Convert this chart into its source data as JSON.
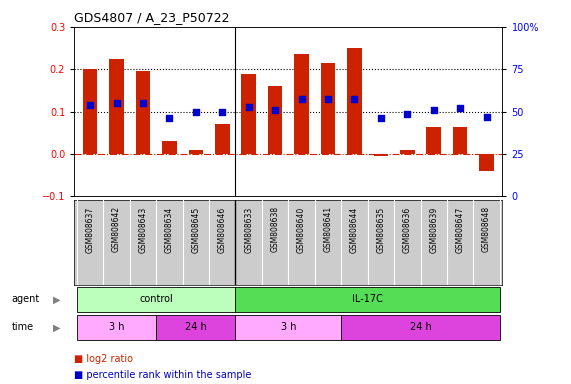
{
  "title": "GDS4807 / A_23_P50722",
  "samples": [
    "GSM808637",
    "GSM808642",
    "GSM808643",
    "GSM808634",
    "GSM808645",
    "GSM808646",
    "GSM808633",
    "GSM808638",
    "GSM808640",
    "GSM808641",
    "GSM808644",
    "GSM808635",
    "GSM808636",
    "GSM808639",
    "GSM808647",
    "GSM808648"
  ],
  "log2_ratio": [
    0.2,
    0.225,
    0.195,
    0.03,
    0.01,
    0.07,
    0.19,
    0.16,
    0.235,
    0.215,
    0.25,
    -0.005,
    0.01,
    0.065,
    0.065,
    -0.04
  ],
  "percentile": [
    0.115,
    0.12,
    0.12,
    0.085,
    0.1,
    0.1,
    0.11,
    0.105,
    0.13,
    0.13,
    0.13,
    0.085,
    0.095,
    0.105,
    0.108,
    0.088
  ],
  "bar_color": "#cc2200",
  "dot_color": "#0000cc",
  "ylim_left": [
    -0.1,
    0.3
  ],
  "ylim_right": [
    0,
    100
  ],
  "yticks_left": [
    -0.1,
    0.0,
    0.1,
    0.2,
    0.3
  ],
  "yticks_right": [
    0,
    25,
    50,
    75,
    100
  ],
  "hline_y": [
    0.1,
    0.2
  ],
  "agent_groups": [
    {
      "label": "control",
      "start": 0,
      "end": 6,
      "color": "#bbffbb"
    },
    {
      "label": "IL-17C",
      "start": 6,
      "end": 16,
      "color": "#55dd55"
    }
  ],
  "time_groups": [
    {
      "label": "3 h",
      "start": 0,
      "end": 3,
      "color": "#ffaaff"
    },
    {
      "label": "24 h",
      "start": 3,
      "end": 6,
      "color": "#dd44dd"
    },
    {
      "label": "3 h",
      "start": 6,
      "end": 10,
      "color": "#ffaaff"
    },
    {
      "label": "24 h",
      "start": 10,
      "end": 16,
      "color": "#dd44dd"
    }
  ],
  "legend_items": [
    {
      "label": "log2 ratio",
      "color": "#cc2200"
    },
    {
      "label": "percentile rank within the sample",
      "color": "#0000cc"
    }
  ],
  "control_separator": 5.5,
  "background_color": "#ffffff"
}
